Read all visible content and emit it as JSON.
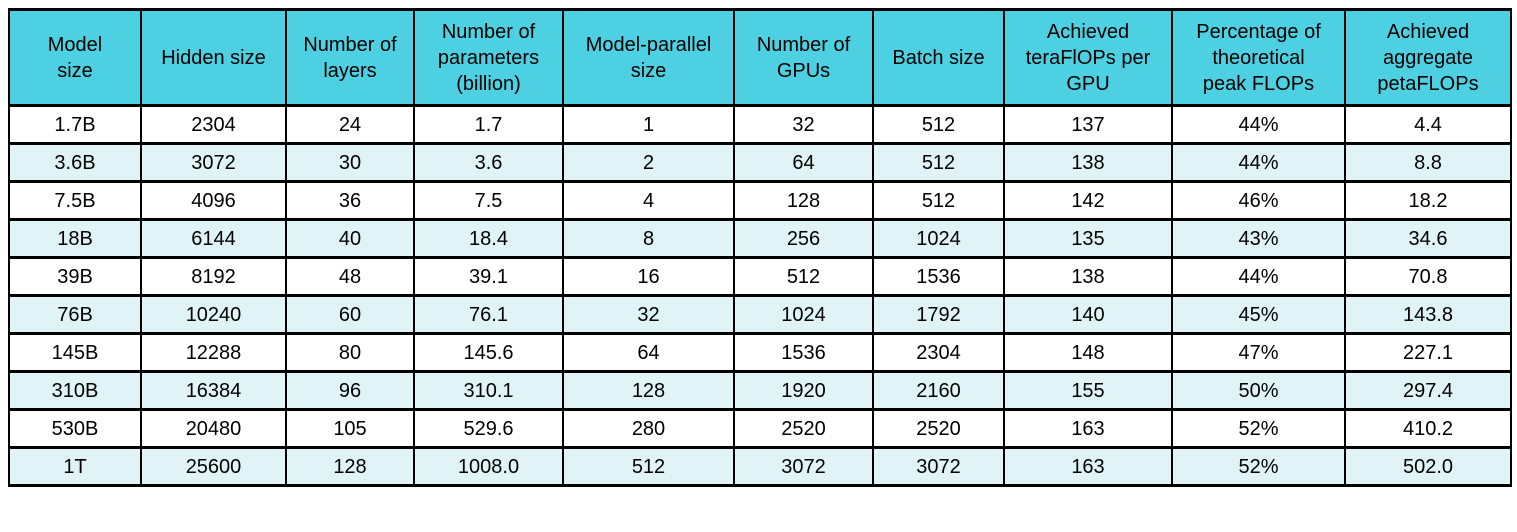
{
  "chart_data": {
    "type": "table",
    "description": "Model scaling and achieved FLOPs performance table",
    "columns": [
      "Model\nsize",
      "Hidden size",
      "Number of\nlayers",
      "Number of\nparameters\n(billion)",
      "Model-parallel\nsize",
      "Number of\nGPUs",
      "Batch size",
      "Achieved\nteraFlOPs per\nGPU",
      "Percentage of\ntheoretical\npeak FLOPs",
      "Achieved\naggregate\npetaFLOPs"
    ],
    "rows": [
      [
        "1.7B",
        "2304",
        "24",
        "1.7",
        "1",
        "32",
        "512",
        "137",
        "44%",
        "4.4"
      ],
      [
        "3.6B",
        "3072",
        "30",
        "3.6",
        "2",
        "64",
        "512",
        "138",
        "44%",
        "8.8"
      ],
      [
        "7.5B",
        "4096",
        "36",
        "7.5",
        "4",
        "128",
        "512",
        "142",
        "46%",
        "18.2"
      ],
      [
        "18B",
        "6144",
        "40",
        "18.4",
        "8",
        "256",
        "1024",
        "135",
        "43%",
        "34.6"
      ],
      [
        "39B",
        "8192",
        "48",
        "39.1",
        "16",
        "512",
        "1536",
        "138",
        "44%",
        "70.8"
      ],
      [
        "76B",
        "10240",
        "60",
        "76.1",
        "32",
        "1024",
        "1792",
        "140",
        "45%",
        "143.8"
      ],
      [
        "145B",
        "12288",
        "80",
        "145.6",
        "64",
        "1536",
        "2304",
        "148",
        "47%",
        "227.1"
      ],
      [
        "310B",
        "16384",
        "96",
        "310.1",
        "128",
        "1920",
        "2160",
        "155",
        "50%",
        "297.4"
      ],
      [
        "530B",
        "20480",
        "105",
        "529.6",
        "280",
        "2520",
        "2520",
        "163",
        "52%",
        "410.2"
      ],
      [
        "1T",
        "25600",
        "128",
        "1008.0",
        "512",
        "3072",
        "3072",
        "163",
        "52%",
        "502.0"
      ]
    ],
    "style": {
      "header_bg": "#4DD0E1",
      "stripe_bg": "#E0F4F8",
      "row_bg": "#FFFFFF",
      "border_color": "#000000",
      "text_color": "#000000",
      "stripe_pattern": "every second data row tinted, starting with row 2"
    }
  }
}
